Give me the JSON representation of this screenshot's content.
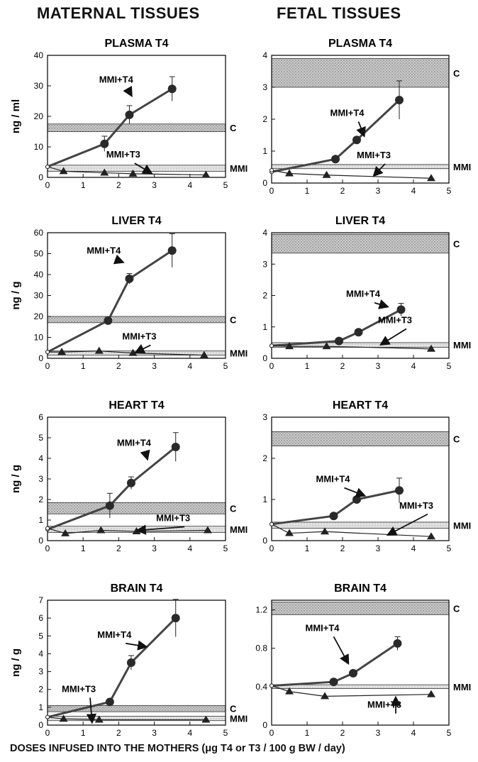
{
  "headers": {
    "left": "MATERNAL TISSUES",
    "right": "FETAL TISSUES"
  },
  "footer": "DOSES INFUSED INTO THE MOTHERS (μg T4 or T3 / 100 g BW / day)",
  "colors": {
    "line": "#444444",
    "band_fill": "#b8b8b8",
    "axis": "#111111"
  },
  "chart_data": [
    {
      "type": "line",
      "id": "maternal-plasma",
      "title": "PLASMA T4",
      "ylabel": "ng / ml",
      "xlim": [
        0,
        5
      ],
      "ylim": [
        0,
        40
      ],
      "xticks": [
        0,
        1,
        2,
        3,
        4,
        5
      ],
      "yticks": [
        0,
        10,
        20,
        30,
        40
      ],
      "series": [
        {
          "name": "MMI+T4",
          "marker": "circle",
          "x": [
            0,
            1.6,
            2.3,
            3.5
          ],
          "y": [
            3.5,
            11,
            20.5,
            29
          ],
          "err": [
            0,
            2.5,
            3,
            4
          ]
        },
        {
          "name": "MMI+T3",
          "marker": "triangle",
          "x": [
            0,
            0.45,
            1.6,
            2.4,
            4.45
          ],
          "y": [
            3.5,
            2,
            1.5,
            1.2,
            0.8
          ],
          "err": [
            0,
            0,
            0,
            0,
            0
          ]
        }
      ],
      "bands": [
        {
          "name": "C",
          "ylow": 15,
          "yhigh": 17.5
        },
        {
          "name": "MMI",
          "ylow": 2,
          "yhigh": 4
        }
      ],
      "annotations": [
        {
          "text": "MMI+T4",
          "x": 1.45,
          "y": 31,
          "ax": 2.35,
          "ay": 27
        },
        {
          "text": "MMI+T3",
          "x": 1.65,
          "y": 6.5,
          "ax": 2.9,
          "ay": 1.5
        }
      ]
    },
    {
      "type": "line",
      "id": "fetal-plasma",
      "title": "PLASMA T4",
      "ylabel": "",
      "xlim": [
        0,
        5
      ],
      "ylim": [
        0,
        4
      ],
      "xticks": [
        0,
        1,
        2,
        3,
        4,
        5
      ],
      "yticks": [
        0,
        1,
        2,
        3,
        4
      ],
      "series": [
        {
          "name": "MMI+T4",
          "marker": "circle",
          "x": [
            0,
            1.8,
            2.4,
            3.6
          ],
          "y": [
            0.35,
            0.75,
            1.35,
            2.6
          ],
          "err": [
            0,
            0,
            0,
            0.6
          ]
        },
        {
          "name": "MMI+T3",
          "marker": "triangle",
          "x": [
            0,
            0.5,
            1.55,
            4.5
          ],
          "y": [
            0.4,
            0.3,
            0.25,
            0.15
          ],
          "err": [
            0,
            0,
            0,
            0
          ]
        }
      ],
      "bands": [
        {
          "name": "C",
          "ylow": 3,
          "yhigh": 3.9
        },
        {
          "name": "MMI",
          "ylow": 0.45,
          "yhigh": 0.58
        }
      ],
      "annotations": [
        {
          "text": "MMI+T4",
          "x": 1.65,
          "y": 2.1,
          "ax": 2.6,
          "ay": 1.5
        },
        {
          "text": "MMI+T3",
          "x": 2.4,
          "y": 0.78,
          "ax": 2.9,
          "ay": 0.25
        }
      ]
    },
    {
      "type": "line",
      "id": "maternal-liver",
      "title": "LIVER T4",
      "ylabel": "ng / g",
      "xlim": [
        0,
        5
      ],
      "ylim": [
        0,
        60
      ],
      "xticks": [
        0,
        1,
        2,
        3,
        4,
        5
      ],
      "yticks": [
        0,
        10,
        20,
        30,
        40,
        50,
        60
      ],
      "series": [
        {
          "name": "MMI+T4",
          "marker": "circle",
          "x": [
            0,
            1.7,
            2.3,
            3.5
          ],
          "y": [
            3,
            18,
            38,
            51.5
          ],
          "err": [
            0,
            0,
            2.5,
            8
          ]
        },
        {
          "name": "MMI+T3",
          "marker": "triangle",
          "x": [
            0,
            0.4,
            1.45,
            2.4,
            4.4
          ],
          "y": [
            3,
            3,
            3.5,
            2.5,
            1.5
          ],
          "err": [
            0,
            0,
            0,
            0,
            0
          ]
        }
      ],
      "bands": [
        {
          "name": "C",
          "ylow": 17,
          "yhigh": 20
        },
        {
          "name": "MMI",
          "ylow": 1.5,
          "yhigh": 3.5
        }
      ],
      "annotations": [
        {
          "text": "MMI+T4",
          "x": 1.1,
          "y": 50,
          "ax": 2.1,
          "ay": 46
        },
        {
          "text": "MMI+T3",
          "x": 2.1,
          "y": 9,
          "ax": 2.5,
          "ay": 3
        }
      ]
    },
    {
      "type": "line",
      "id": "fetal-liver",
      "title": "LIVER T4",
      "ylabel": "",
      "xlim": [
        0,
        5
      ],
      "ylim": [
        0,
        4
      ],
      "xticks": [
        0,
        1,
        2,
        3,
        4,
        5
      ],
      "yticks": [
        0,
        1,
        2,
        3,
        4
      ],
      "series": [
        {
          "name": "MMI+T4",
          "marker": "circle",
          "x": [
            0,
            1.9,
            2.45,
            3.65
          ],
          "y": [
            0.4,
            0.55,
            0.83,
            1.55
          ],
          "err": [
            0,
            0,
            0,
            0.2
          ]
        },
        {
          "name": "MMI+T3",
          "marker": "triangle",
          "x": [
            0,
            0.5,
            1.55,
            4.5
          ],
          "y": [
            0.4,
            0.38,
            0.38,
            0.3
          ],
          "err": [
            0,
            0,
            0,
            0
          ]
        }
      ],
      "bands": [
        {
          "name": "C",
          "ylow": 3.35,
          "yhigh": 3.95
        },
        {
          "name": "MMI",
          "ylow": 0.35,
          "yhigh": 0.5
        }
      ],
      "annotations": [
        {
          "text": "MMI+T4",
          "x": 2.1,
          "y": 1.95,
          "ax": 3.25,
          "ay": 1.65
        },
        {
          "text": "MMI+T3",
          "x": 3.0,
          "y": 1.12,
          "ax": 3.1,
          "ay": 0.45
        }
      ]
    },
    {
      "type": "line",
      "id": "maternal-heart",
      "title": "HEART T4",
      "ylabel": "ng / g",
      "xlim": [
        0,
        5
      ],
      "ylim": [
        0,
        6
      ],
      "xticks": [
        0,
        1,
        2,
        3,
        4,
        5
      ],
      "yticks": [
        0,
        1,
        2,
        3,
        4,
        5,
        6
      ],
      "series": [
        {
          "name": "MMI+T4",
          "marker": "circle",
          "x": [
            0,
            1.75,
            2.35,
            3.6
          ],
          "y": [
            0.55,
            1.7,
            2.8,
            4.55
          ],
          "err": [
            0,
            0.6,
            0.3,
            0.7
          ]
        },
        {
          "name": "MMI+T3",
          "marker": "triangle",
          "x": [
            0,
            0.5,
            1.5,
            2.5,
            4.5
          ],
          "y": [
            0.6,
            0.35,
            0.5,
            0.45,
            0.5
          ],
          "err": [
            0,
            0,
            0,
            0,
            0
          ]
        }
      ],
      "bands": [
        {
          "name": "C",
          "ylow": 1.3,
          "yhigh": 1.85
        },
        {
          "name": "MMI",
          "ylow": 0.4,
          "yhigh": 0.7
        }
      ],
      "annotations": [
        {
          "text": "MMI+T4",
          "x": 1.95,
          "y": 4.6,
          "ax": 2.8,
          "ay": 4.0
        },
        {
          "text": "MMI+T3",
          "x": 3.05,
          "y": 0.95,
          "ax": 2.55,
          "ay": 0.5
        }
      ]
    },
    {
      "type": "line",
      "id": "fetal-heart",
      "title": "HEART T4",
      "ylabel": "",
      "xlim": [
        0,
        5
      ],
      "ylim": [
        0,
        3
      ],
      "xticks": [
        0,
        1,
        2,
        3,
        4,
        5
      ],
      "yticks": [
        0,
        1,
        2,
        3
      ],
      "series": [
        {
          "name": "MMI+T4",
          "marker": "circle",
          "x": [
            0,
            1.75,
            2.4,
            3.6
          ],
          "y": [
            0.4,
            0.6,
            1.0,
            1.22
          ],
          "err": [
            0,
            0,
            0,
            0.3
          ]
        },
        {
          "name": "MMI+T3",
          "marker": "triangle",
          "x": [
            0,
            0.5,
            1.5,
            4.5
          ],
          "y": [
            0.4,
            0.18,
            0.22,
            0.1
          ],
          "err": [
            0,
            0,
            0,
            0
          ]
        }
      ],
      "bands": [
        {
          "name": "C",
          "ylow": 2.3,
          "yhigh": 2.65
        },
        {
          "name": "MMI",
          "ylow": 0.3,
          "yhigh": 0.45
        }
      ],
      "annotations": [
        {
          "text": "MMI+T4",
          "x": 1.25,
          "y": 1.42,
          "ax": 2.6,
          "ay": 1.1
        },
        {
          "text": "MMI+T3",
          "x": 3.6,
          "y": 0.78,
          "ax": 3.3,
          "ay": 0.15
        }
      ]
    },
    {
      "type": "line",
      "id": "maternal-brain",
      "title": "BRAIN T4",
      "ylabel": "ng / g",
      "xlim": [
        0,
        5
      ],
      "ylim": [
        0,
        7
      ],
      "xticks": [
        0,
        1,
        2,
        3,
        4,
        5
      ],
      "yticks": [
        0,
        1,
        2,
        3,
        4,
        5,
        6,
        7
      ],
      "series": [
        {
          "name": "MMI+T4",
          "marker": "circle",
          "x": [
            0,
            1.75,
            2.35,
            3.6
          ],
          "y": [
            0.45,
            1.3,
            3.5,
            6.0
          ],
          "err": [
            0,
            0,
            0.4,
            1.05
          ]
        },
        {
          "name": "MMI+T3",
          "marker": "triangle",
          "x": [
            0,
            0.45,
            1.45,
            4.45
          ],
          "y": [
            0.45,
            0.35,
            0.3,
            0.3
          ],
          "err": [
            0,
            0,
            0,
            0
          ]
        }
      ],
      "bands": [
        {
          "name": "C",
          "ylow": 0.75,
          "yhigh": 1.1
        },
        {
          "name": "MMI",
          "ylow": 0.25,
          "yhigh": 0.5
        }
      ],
      "annotations": [
        {
          "text": "MMI+T4",
          "x": 1.4,
          "y": 4.9,
          "ax": 2.75,
          "ay": 4.4
        },
        {
          "text": "MMI+T3",
          "x": 0.4,
          "y": 1.85,
          "ax": 1.25,
          "ay": 0.2
        }
      ]
    },
    {
      "type": "line",
      "id": "fetal-brain",
      "title": "BRAIN T4",
      "ylabel": "",
      "xlim": [
        0,
        5
      ],
      "ylim": [
        0,
        1.3
      ],
      "xticks": [
        0,
        1,
        2,
        3,
        4,
        5
      ],
      "yticks": [
        0,
        0.4,
        0.8,
        1.2
      ],
      "series": [
        {
          "name": "MMI+T4",
          "marker": "circle",
          "x": [
            0,
            1.75,
            2.3,
            3.55
          ],
          "y": [
            0.41,
            0.45,
            0.54,
            0.85
          ],
          "err": [
            0,
            0,
            0,
            0.07
          ]
        },
        {
          "name": "MMI+T3",
          "marker": "triangle",
          "x": [
            0,
            0.5,
            1.5,
            4.5
          ],
          "y": [
            0.41,
            0.35,
            0.3,
            0.32
          ],
          "err": [
            0,
            0,
            0,
            0
          ]
        }
      ],
      "bands": [
        {
          "name": "C",
          "ylow": 1.15,
          "yhigh": 1.28
        },
        {
          "name": "MMI",
          "ylow": 0.38,
          "yhigh": 0.42
        }
      ],
      "annotations": [
        {
          "text": "MMI+T4",
          "x": 0.95,
          "y": 0.98,
          "ax": 2.15,
          "ay": 0.65
        },
        {
          "text": "MMI+T3",
          "x": 2.7,
          "y": 0.18,
          "ax": 3.5,
          "ay": 0.28
        }
      ]
    }
  ]
}
